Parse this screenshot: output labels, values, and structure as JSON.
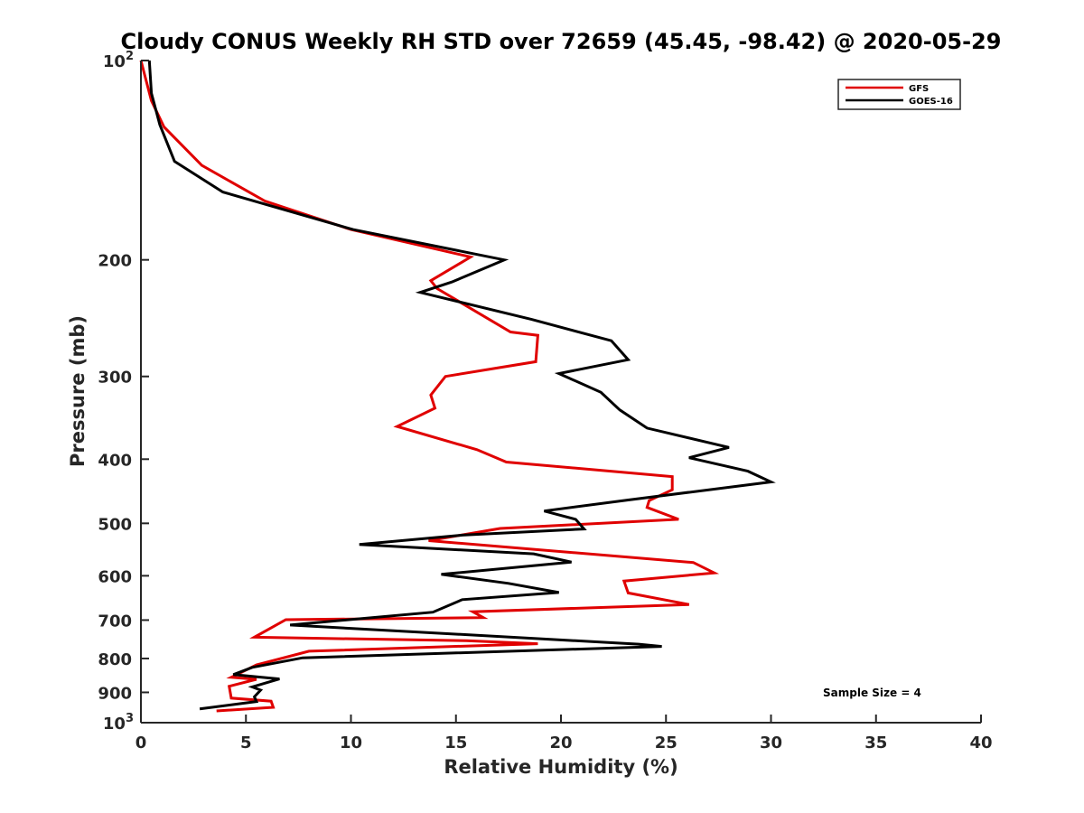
{
  "chart_data": {
    "type": "line",
    "title": "Cloudy CONUS Weekly RH STD over 72659 (45.45, -98.42) @ 2020-05-29",
    "xlabel": "Relative Humidity (%)",
    "ylabel": "Pressure (mb)",
    "xlim": [
      0,
      40
    ],
    "ylim": [
      100,
      1000
    ],
    "y_scale": "log",
    "y_reversed": true,
    "x_ticks": [
      {
        "value": 0,
        "label": "0"
      },
      {
        "value": 5,
        "label": "5"
      },
      {
        "value": 10,
        "label": "10"
      },
      {
        "value": 15,
        "label": "15"
      },
      {
        "value": 20,
        "label": "20"
      },
      {
        "value": 25,
        "label": "25"
      },
      {
        "value": 30,
        "label": "30"
      },
      {
        "value": 35,
        "label": "35"
      },
      {
        "value": 40,
        "label": "40"
      }
    ],
    "y_ticks": [
      {
        "value": 100,
        "label": "10",
        "sup": "2"
      },
      {
        "value": 200,
        "label": "200"
      },
      {
        "value": 300,
        "label": "300"
      },
      {
        "value": 400,
        "label": "400"
      },
      {
        "value": 500,
        "label": "500"
      },
      {
        "value": 600,
        "label": "600"
      },
      {
        "value": 700,
        "label": "700"
      },
      {
        "value": 800,
        "label": "800"
      },
      {
        "value": 900,
        "label": "900"
      },
      {
        "value": 1000,
        "label": "10",
        "sup": "3"
      }
    ],
    "legend_position": "top-right",
    "grid": false,
    "series": [
      {
        "name": "GFS",
        "color": "#e00000",
        "x": [
          0.0,
          0.5,
          1.1,
          2.9,
          5.9,
          10.0,
          15.7,
          13.8,
          14.1,
          17.6,
          18.9,
          18.8,
          14.5,
          13.8,
          14.0,
          12.2,
          16.0,
          17.4,
          25.3,
          25.3,
          24.2,
          24.1,
          25.6,
          17.1,
          13.7,
          26.3,
          27.3,
          23.0,
          23.2,
          26.1,
          15.8,
          16.3,
          6.9,
          5.4,
          15.5,
          18.9,
          8.0,
          5.5,
          4.3,
          5.5,
          4.2,
          4.3,
          6.2,
          6.3,
          3.6
        ],
        "y": [
          100,
          115,
          126,
          144,
          163,
          180,
          198,
          215,
          221,
          257,
          260,
          285,
          300,
          320,
          335,
          357,
          387,
          404,
          425,
          445,
          462,
          473,
          493,
          509,
          531,
          573,
          594,
          611,
          637,
          663,
          680,
          694,
          699,
          743,
          752,
          760,
          780,
          818,
          854,
          860,
          881,
          918,
          928,
          948,
          960
        ]
      },
      {
        "name": "GOES-16",
        "color": "#000000",
        "x": [
          0.4,
          0.5,
          0.9,
          1.6,
          3.9,
          10.1,
          17.3,
          14.8,
          13.3,
          18.6,
          22.4,
          23.2,
          19.9,
          21.9,
          22.8,
          24.1,
          28.0,
          26.1,
          28.9,
          30.0,
          23.2,
          19.2,
          20.7,
          21.1,
          15.3,
          10.4,
          18.7,
          20.5,
          14.3,
          17.5,
          19.9,
          15.3,
          13.9,
          7.1,
          23.7,
          24.8,
          7.7,
          5.3,
          4.4,
          6.6,
          5.3,
          5.7,
          5.4,
          5.5,
          2.8
        ],
        "y": [
          100,
          112,
          125,
          142,
          158,
          180,
          200,
          216,
          224,
          246,
          265,
          283,
          297,
          317,
          337,
          359,
          384,
          398,
          417,
          433,
          461,
          479,
          493,
          510,
          521,
          538,
          556,
          572,
          597,
          616,
          636,
          652,
          681,
          712,
          761,
          767,
          798,
          825,
          846,
          859,
          883,
          893,
          914,
          929,
          953
        ]
      }
    ],
    "annotations": [
      {
        "text": "Sample Size = 4"
      }
    ]
  }
}
